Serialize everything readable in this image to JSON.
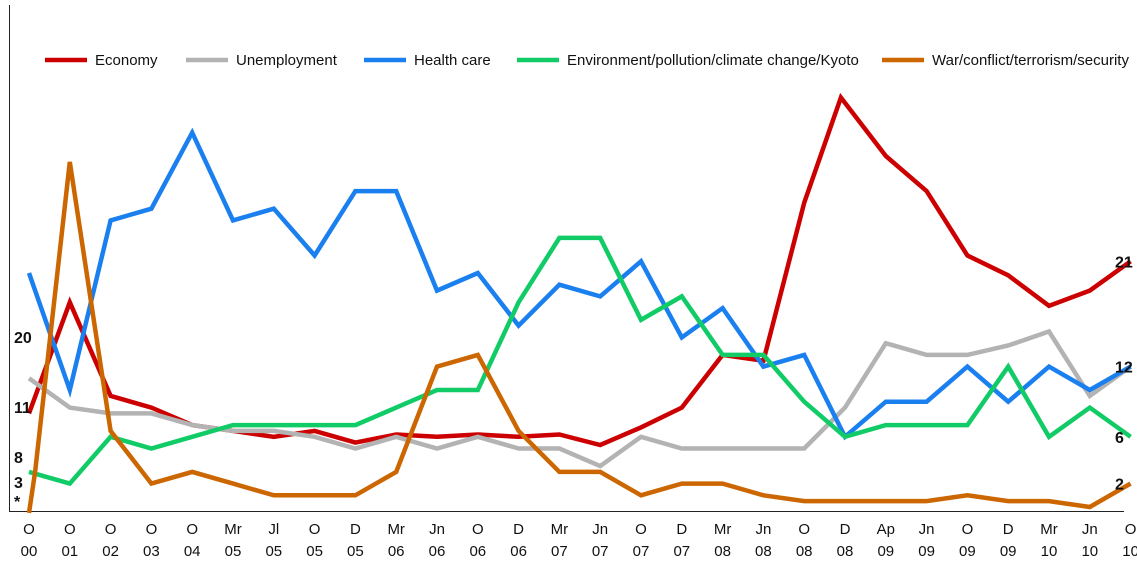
{
  "chart_data": {
    "type": "line",
    "categories": [
      [
        "O",
        "00"
      ],
      [
        "O",
        "01"
      ],
      [
        "O",
        "02"
      ],
      [
        "O",
        "03"
      ],
      [
        "O",
        "04"
      ],
      [
        "Mr",
        "05"
      ],
      [
        "Jl",
        "05"
      ],
      [
        "O",
        "05"
      ],
      [
        "D",
        "05"
      ],
      [
        "Mr",
        "06"
      ],
      [
        "Jn",
        "06"
      ],
      [
        "O",
        "06"
      ],
      [
        "D",
        "06"
      ],
      [
        "Mr",
        "07"
      ],
      [
        "Jn",
        "07"
      ],
      [
        "O",
        "07"
      ],
      [
        "D",
        "07"
      ],
      [
        "Mr",
        "08"
      ],
      [
        "Jn",
        "08"
      ],
      [
        "O",
        "08"
      ],
      [
        "D",
        "08"
      ],
      [
        "Ap",
        "09"
      ],
      [
        "Jn",
        "09"
      ],
      [
        "O",
        "09"
      ],
      [
        "D",
        "09"
      ],
      [
        "Mr",
        "10"
      ],
      [
        "Jn",
        "10"
      ],
      [
        "O",
        "10"
      ]
    ],
    "ylim": [
      0,
      27
    ],
    "grid": false,
    "legend_position": "top",
    "series": [
      {
        "name": "Economy",
        "color": "#cc0000",
        "values": [
          [
            0,
            8
          ],
          [
            1,
            17.5
          ],
          [
            2,
            9.5
          ],
          [
            3,
            8.5
          ],
          [
            4,
            7
          ],
          [
            5,
            6.5
          ],
          [
            6,
            6
          ],
          [
            7,
            6.5
          ],
          [
            8,
            5.5
          ],
          [
            9,
            6.2
          ],
          [
            10,
            6
          ],
          [
            11,
            6.2
          ],
          [
            12,
            6
          ],
          [
            13,
            6.2
          ],
          [
            14,
            5.3
          ],
          [
            15,
            6.8
          ],
          [
            16,
            8.5
          ],
          [
            17,
            13
          ],
          [
            18,
            12.5
          ],
          [
            19,
            26
          ],
          [
            19.9,
            35
          ],
          [
            21,
            30
          ],
          [
            22,
            27
          ],
          [
            23,
            21.5
          ],
          [
            24,
            19.8
          ],
          [
            25,
            17.2
          ],
          [
            26,
            18.5
          ],
          [
            27,
            21
          ]
        ],
        "end_label": "21"
      },
      {
        "name": "Unemployment",
        "color": "#b3b3b3",
        "values": [
          [
            0,
            11
          ],
          [
            1,
            8.5
          ],
          [
            2,
            8
          ],
          [
            3,
            8
          ],
          [
            4,
            7
          ],
          [
            5,
            6.5
          ],
          [
            6,
            6.5
          ],
          [
            7,
            6
          ],
          [
            8,
            5
          ],
          [
            9,
            6
          ],
          [
            10,
            5
          ],
          [
            11,
            6
          ],
          [
            12,
            5
          ],
          [
            13,
            5
          ],
          [
            14,
            3.5
          ],
          [
            15,
            6
          ],
          [
            16,
            5
          ],
          [
            17,
            5
          ],
          [
            18,
            5
          ],
          [
            19,
            5
          ],
          [
            20,
            8.5
          ],
          [
            21,
            14
          ],
          [
            22,
            13
          ],
          [
            23,
            13
          ],
          [
            24,
            13.8
          ],
          [
            25,
            15
          ],
          [
            26,
            9.5
          ],
          [
            27,
            12
          ]
        ],
        "end_label": ""
      },
      {
        "name": "Health care",
        "color": "#1a7fef",
        "values": [
          [
            0,
            20
          ],
          [
            1,
            10
          ],
          [
            2,
            24.5
          ],
          [
            3,
            25.5
          ],
          [
            4,
            32
          ],
          [
            5,
            24.5
          ],
          [
            6,
            25.5
          ],
          [
            7,
            21.5
          ],
          [
            8,
            27
          ],
          [
            9,
            27
          ],
          [
            10,
            18.5
          ],
          [
            11,
            20
          ],
          [
            12,
            15.5
          ],
          [
            13,
            19
          ],
          [
            14,
            18
          ],
          [
            15,
            21
          ],
          [
            16,
            14.5
          ],
          [
            17,
            17
          ],
          [
            18,
            12
          ],
          [
            19,
            13
          ],
          [
            20,
            6
          ],
          [
            21,
            9
          ],
          [
            22,
            9
          ],
          [
            23,
            12
          ],
          [
            24,
            9
          ],
          [
            25,
            12
          ],
          [
            26,
            10
          ],
          [
            27,
            12
          ]
        ],
        "end_label": "12"
      },
      {
        "name": "Environment/pollution/climate change/Kyoto",
        "color": "#11cc66",
        "values": [
          [
            0,
            3
          ],
          [
            1,
            2
          ],
          [
            2,
            6
          ],
          [
            3,
            5
          ],
          [
            4,
            6
          ],
          [
            5,
            7
          ],
          [
            6,
            7
          ],
          [
            7,
            7
          ],
          [
            8,
            7
          ],
          [
            9,
            8.5
          ],
          [
            10,
            10
          ],
          [
            11,
            10
          ],
          [
            12,
            17.5
          ],
          [
            13,
            23
          ],
          [
            14,
            23
          ],
          [
            15,
            16
          ],
          [
            16,
            18
          ],
          [
            17,
            13
          ],
          [
            18,
            13
          ],
          [
            19,
            9
          ],
          [
            20,
            6
          ],
          [
            21,
            7
          ],
          [
            22,
            7
          ],
          [
            23,
            7
          ],
          [
            24,
            12
          ],
          [
            25,
            6
          ],
          [
            26,
            8.5
          ],
          [
            27,
            6
          ]
        ],
        "end_label": "6"
      },
      {
        "name": "War/conflict/terrorism/security",
        "color": "#cc6600",
        "values": [
          [
            0,
            -0.5
          ],
          [
            0.15,
            3
          ],
          [
            1,
            29.5
          ],
          [
            2,
            6.5
          ],
          [
            3,
            2
          ],
          [
            4,
            3
          ],
          [
            5,
            2
          ],
          [
            6,
            1
          ],
          [
            7,
            1
          ],
          [
            8,
            1
          ],
          [
            9,
            3
          ],
          [
            10,
            12
          ],
          [
            11,
            13
          ],
          [
            12,
            6.5
          ],
          [
            13,
            3
          ],
          [
            14,
            3
          ],
          [
            15,
            1
          ],
          [
            16,
            2
          ],
          [
            17,
            2
          ],
          [
            18,
            1
          ],
          [
            19,
            0.5
          ],
          [
            20,
            0.5
          ],
          [
            21,
            0.5
          ],
          [
            22,
            0.5
          ],
          [
            23,
            1
          ],
          [
            24,
            0.5
          ],
          [
            25,
            0.5
          ],
          [
            26,
            0
          ],
          [
            27,
            2
          ]
        ],
        "end_label": "2"
      }
    ],
    "start_labels": [
      "20",
      "11",
      "8",
      "3",
      "*"
    ]
  }
}
